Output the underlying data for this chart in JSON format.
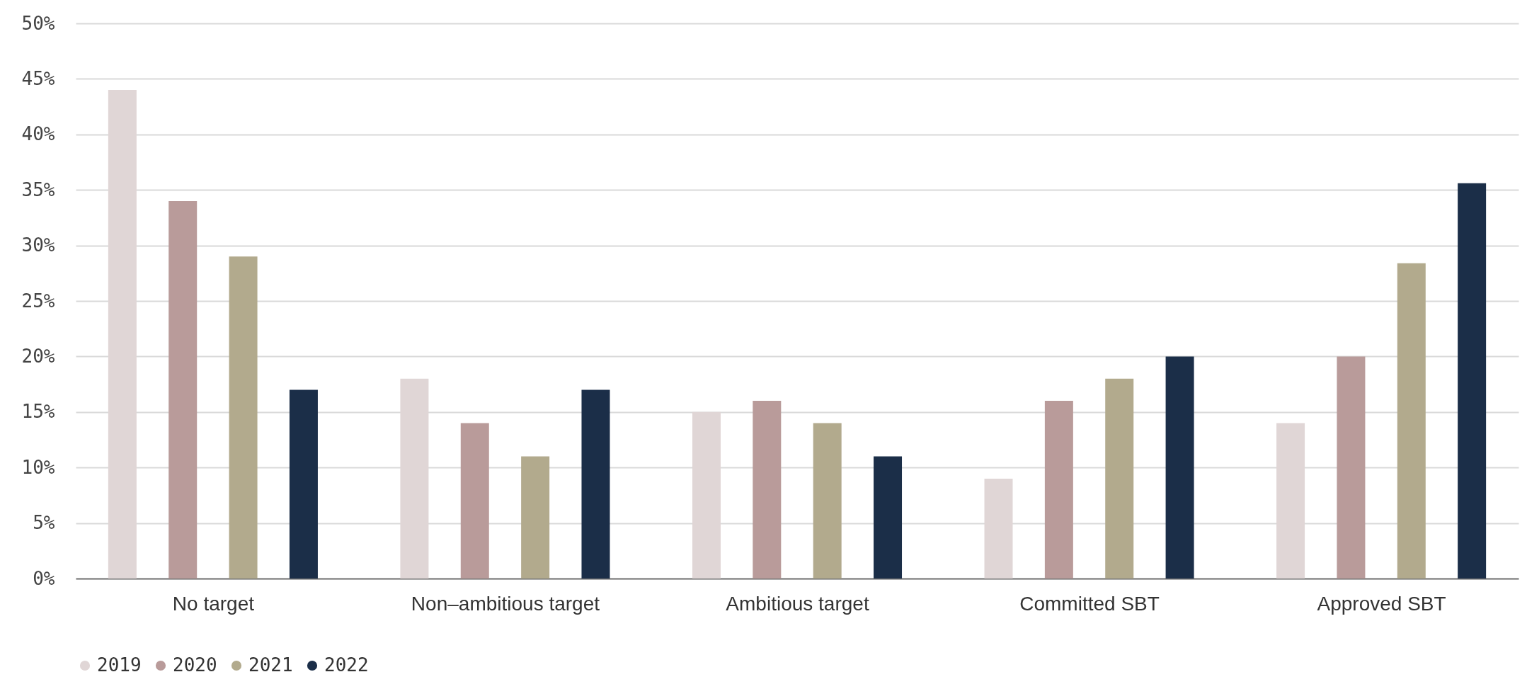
{
  "chart_data": {
    "type": "bar",
    "categories": [
      "No target",
      "Non–ambitious target",
      "Ambitious target",
      "Committed SBT",
      "Approved SBT"
    ],
    "series": [
      {
        "name": "2019",
        "color": "#e0d6d6",
        "values": [
          44,
          18,
          15,
          9,
          14
        ]
      },
      {
        "name": "2020",
        "color": "#b99b9a",
        "values": [
          34,
          14,
          16,
          16,
          20
        ]
      },
      {
        "name": "2021",
        "color": "#b2aa8d",
        "values": [
          29,
          11,
          14,
          18,
          28.4
        ]
      },
      {
        "name": "2022",
        "color": "#1b2e48",
        "values": [
          17,
          17,
          11,
          20,
          35.6
        ]
      }
    ],
    "ylim": [
      0,
      50
    ],
    "yticks": [
      {
        "value": 0,
        "label": "0%"
      },
      {
        "value": 5,
        "label": "5%"
      },
      {
        "value": 10,
        "label": "10%"
      },
      {
        "value": 15,
        "label": "15%"
      },
      {
        "value": 20,
        "label": "20%"
      },
      {
        "value": 25,
        "label": "25%"
      },
      {
        "value": 30,
        "label": "30%"
      },
      {
        "value": 35,
        "label": "35%"
      },
      {
        "value": 40,
        "label": "40%"
      },
      {
        "value": 45,
        "label": "45%"
      },
      {
        "value": 50,
        "label": "50%"
      }
    ],
    "grid": "y",
    "legend": "bottom"
  }
}
